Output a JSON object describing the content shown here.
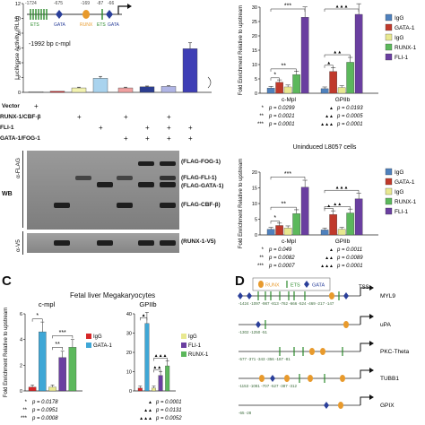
{
  "panel_a": {
    "y_axis_label": "Luciferase Activity (RLU)",
    "y_ticks": [
      "0",
      "2",
      "4",
      "6",
      "8",
      "10",
      "12"
    ],
    "promoter_label": "-1992 bp c-mpl",
    "positions": [
      "-1724",
      "-675",
      "-169",
      "-87",
      "-66"
    ],
    "sites": [
      "ETS",
      "GATA",
      "RUNX",
      "ETS",
      "GATA"
    ],
    "rows": [
      {
        "label": "Vector",
        "marks": [
          "+",
          "",
          "",
          "",
          "",
          "",
          "",
          ""
        ]
      },
      {
        "label": "RUNX-1/CBF-β",
        "marks": [
          "",
          "",
          "+",
          "",
          "+",
          "",
          "+",
          ""
        ]
      },
      {
        "label": "FLI-1",
        "marks": [
          "",
          "",
          "",
          "+",
          "",
          "+",
          "+",
          "+"
        ]
      },
      {
        "label": "GATA-1/FOG-1",
        "marks": [
          "",
          "",
          "",
          "",
          "+",
          "+",
          "+",
          "+"
        ]
      }
    ],
    "wb_label": "WB",
    "blot_rows": [
      {
        "antibody": "α-FLAG",
        "proteins": [
          "(FLAG-FOG-1)",
          "(FLAG-FLI-1)",
          "(FLAG-GATA-1)",
          "(FLAG-CBF-β)"
        ]
      },
      {
        "antibody": "α-V5",
        "proteins": [
          "(RUNX-1-V5)"
        ]
      }
    ]
  },
  "chart_data": [
    {
      "id": "luciferase",
      "type": "bar",
      "title": "",
      "xlabel": "",
      "ylabel": "Luciferase Activity (RLU)",
      "ylim": [
        0,
        12
      ],
      "values": [
        0.1,
        0.15,
        0.6,
        1.9,
        0.6,
        0.75,
        0.8,
        5.9
      ],
      "errors": [
        0,
        0,
        0.1,
        0.25,
        0.1,
        0.1,
        0.1,
        0.8
      ],
      "colors": [
        "#d9d9d9",
        "#d62728",
        "#f3f3b0",
        "#a9d3ee",
        "#f0a0a0",
        "#2c3e91",
        "#b0b5e5",
        "#3e3eb5"
      ]
    },
    {
      "id": "chip_top",
      "type": "bar",
      "title": "",
      "xlabel": "",
      "ylabel": "Fold Enrichment Relative to upstream",
      "ylim": [
        0,
        30
      ],
      "y_ticks": [
        0,
        5,
        10,
        15,
        20,
        25,
        30
      ],
      "categories": [
        "c-Mpl",
        "GPIIb"
      ],
      "series": [
        {
          "name": "IgG",
          "color": "#4f81bd",
          "values": [
            1.8,
            1.6
          ]
        },
        {
          "name": "GATA-1",
          "color": "#c0392b",
          "values": [
            3.8,
            7.6
          ]
        },
        {
          "name": "IgG",
          "color": "#e8e890",
          "values": [
            2.2,
            2.0
          ]
        },
        {
          "name": "RUNX-1",
          "color": "#5cb85c",
          "values": [
            6.5,
            10.8
          ]
        },
        {
          "name": "FLI-1",
          "color": "#6a3fa0",
          "values": [
            26.5,
            27.5
          ]
        }
      ],
      "pvalues": {
        "c-Mpl": [
          "p = 0.0299",
          "p = 0.0021",
          "p = 0.0001"
        ],
        "GPIIb": [
          "p = 0.0193",
          "p = 0.0005",
          "p = 0.0001"
        ]
      },
      "sig_marks": [
        "*",
        "**",
        "***"
      ],
      "sig_marks_b": [
        "▲",
        "▲▲",
        "▲▲▲"
      ]
    },
    {
      "id": "chip_mid",
      "type": "bar",
      "title": "Uninduced L8057 cells",
      "xlabel": "",
      "ylabel": "Fold Enrichment Relative to upstream",
      "ylim": [
        0,
        20
      ],
      "y_ticks": [
        0,
        5,
        10,
        15,
        20
      ],
      "categories": [
        "c-Mpl",
        "GPIIb"
      ],
      "series": [
        {
          "name": "IgG",
          "color": "#4f81bd",
          "values": [
            1.8,
            1.6
          ]
        },
        {
          "name": "GATA-1",
          "color": "#c0392b",
          "values": [
            3.0,
            6.5
          ]
        },
        {
          "name": "IgG",
          "color": "#e8e890",
          "values": [
            2.2,
            1.8
          ]
        },
        {
          "name": "RUNX-1",
          "color": "#5cb85c",
          "values": [
            6.8,
            7.0
          ]
        },
        {
          "name": "FLI-1",
          "color": "#6a3fa0",
          "values": [
            15.2,
            11.5
          ]
        }
      ],
      "pvalues": {
        "c-Mpl": [
          "p = 0.049",
          "p = 0.0082",
          "p = 0.0007"
        ],
        "GPIIb": [
          "p = 0.0011",
          "p = 0.0089",
          "p = 0.0001"
        ]
      }
    },
    {
      "id": "fetal_cmpl",
      "type": "bar",
      "title": "c-mpl",
      "ylabel": "Fold Enrichment Relative to upstream",
      "ylim": [
        0,
        6
      ],
      "y_ticks": [
        0,
        2,
        4,
        6
      ],
      "series": [
        {
          "name": "IgG",
          "color": "#d62728",
          "value": 0.3
        },
        {
          "name": "GATA-1",
          "color": "#3fa7d6",
          "value": 4.6
        },
        {
          "name": "IgG",
          "color": "#e8e890",
          "value": 0.3
        },
        {
          "name": "FLI-1",
          "color": "#6a3fa0",
          "value": 2.6
        },
        {
          "name": "RUNX-1",
          "color": "#5cb85c",
          "value": 3.4
        }
      ],
      "pvalues": [
        "p = 0.0178",
        "p = 0.0951",
        "p = 0.0008"
      ]
    },
    {
      "id": "fetal_gpiib",
      "type": "bar",
      "title": "GPIIb",
      "ylabel": "",
      "ylim": [
        0,
        40
      ],
      "y_ticks": [
        0,
        10,
        20,
        30,
        40
      ],
      "series": [
        {
          "name": "IgG",
          "color": "#d62728",
          "value": 1.5
        },
        {
          "name": "GATA-1",
          "color": "#3fa7d6",
          "value": 35.0
        },
        {
          "name": "IgG",
          "color": "#e8e890",
          "value": 1.5
        },
        {
          "name": "FLI-1",
          "color": "#6a3fa0",
          "value": 8.0
        },
        {
          "name": "RUNX-1",
          "color": "#5cb85c",
          "value": 13.0
        }
      ],
      "pvalues": [
        "p = 0.0001",
        "p = 0.0131",
        "p = 0.0052"
      ]
    }
  ],
  "panel_c": {
    "letter": "C",
    "title": "Fetal liver Megakaryocytes",
    "legend_left": [
      "IgG",
      "GATA-1"
    ],
    "legend_right": [
      "IgG",
      "FLI-1",
      "RUNX-1"
    ]
  },
  "panel_d": {
    "letter": "D",
    "legend": [
      "RUNX",
      "ETS",
      "GATA"
    ],
    "tss": "TSS",
    "genes": [
      "MYL9",
      "uPA",
      "PKC-Theta",
      "TUBB1",
      "GPIX"
    ],
    "myl9_positions": "-1424 -1097 -987 -813 -762 -666 -524 -469 -217 -147",
    "upa_positions": "-1302 -1250 -51",
    "pkc_positions": "-577 -371 -343 -356 -187 -81",
    "tubb1_positions": "-1153 -1081 -707 -527 -387 -312",
    "gpix_positions": "-65 -28"
  }
}
